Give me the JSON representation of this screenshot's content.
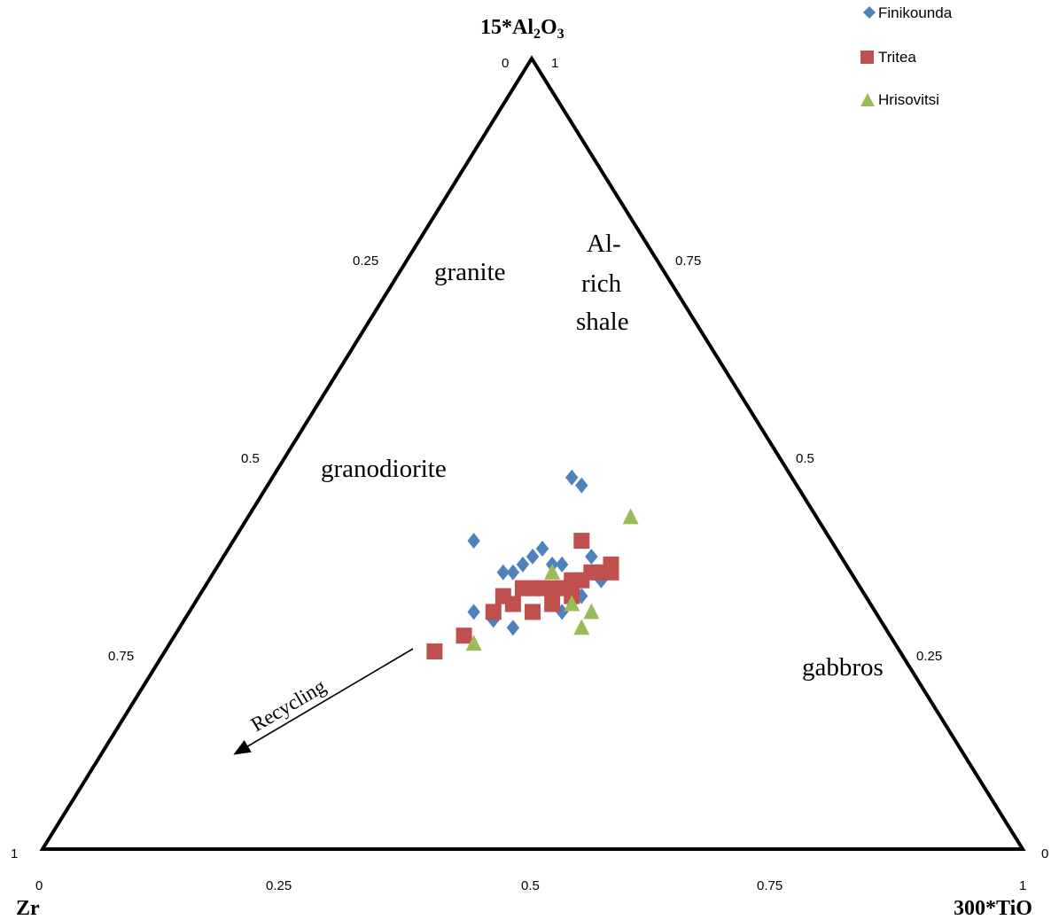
{
  "chart_data": {
    "type": "scatter",
    "subtype": "ternary",
    "axes": {
      "top": {
        "main": "15*Al",
        "sub1": "2",
        "mid": "O",
        "sub2": "3"
      },
      "left": "Zr",
      "right": "300*TiO"
    },
    "ticks": {
      "bottom": [
        "0",
        "0.25",
        "0.5",
        "0.75",
        "1"
      ],
      "left": [
        "1",
        "0.75",
        "0.5",
        "0.25",
        "0"
      ],
      "right": [
        "1",
        "0.75",
        "0.5",
        "0.25",
        "0"
      ]
    },
    "fields": {
      "granite": "granite",
      "al_rich_1": "Al-",
      "al_rich_2": "rich",
      "al_rich_3": "shale",
      "granodiorite": "granodiorite",
      "gabbros": "gabbros",
      "arrow": "Recycling"
    },
    "colors": {
      "Finikounda": "#4f81bd",
      "Tritea": "#c0504d",
      "Hrisovitsi": "#9bbb59"
    },
    "legend_position": "top-right",
    "series": [
      {
        "name": "Finikounda",
        "marker": "diamond",
        "points": [
          {
            "x": 0.54,
            "y": 0.47
          },
          {
            "x": 0.55,
            "y": 0.46
          },
          {
            "x": 0.44,
            "y": 0.39
          },
          {
            "x": 0.5,
            "y": 0.37
          },
          {
            "x": 0.51,
            "y": 0.38
          },
          {
            "x": 0.49,
            "y": 0.36
          },
          {
            "x": 0.52,
            "y": 0.36
          },
          {
            "x": 0.53,
            "y": 0.36
          },
          {
            "x": 0.48,
            "y": 0.35
          },
          {
            "x": 0.47,
            "y": 0.35
          },
          {
            "x": 0.56,
            "y": 0.37
          },
          {
            "x": 0.44,
            "y": 0.3
          },
          {
            "x": 0.46,
            "y": 0.29
          },
          {
            "x": 0.48,
            "y": 0.28
          },
          {
            "x": 0.5,
            "y": 0.3
          },
          {
            "x": 0.53,
            "y": 0.3
          },
          {
            "x": 0.55,
            "y": 0.32
          },
          {
            "x": 0.57,
            "y": 0.34
          }
        ]
      },
      {
        "name": "Tritea",
        "marker": "square",
        "points": [
          {
            "x": 0.55,
            "y": 0.39
          },
          {
            "x": 0.4,
            "y": 0.25
          },
          {
            "x": 0.43,
            "y": 0.27
          },
          {
            "x": 0.49,
            "y": 0.33
          },
          {
            "x": 0.47,
            "y": 0.32
          },
          {
            "x": 0.5,
            "y": 0.33
          },
          {
            "x": 0.51,
            "y": 0.33
          },
          {
            "x": 0.52,
            "y": 0.33
          },
          {
            "x": 0.53,
            "y": 0.33
          },
          {
            "x": 0.54,
            "y": 0.34
          },
          {
            "x": 0.55,
            "y": 0.34
          },
          {
            "x": 0.56,
            "y": 0.35
          },
          {
            "x": 0.57,
            "y": 0.35
          },
          {
            "x": 0.58,
            "y": 0.35
          },
          {
            "x": 0.58,
            "y": 0.36
          },
          {
            "x": 0.46,
            "y": 0.3
          },
          {
            "x": 0.48,
            "y": 0.31
          },
          {
            "x": 0.5,
            "y": 0.3
          },
          {
            "x": 0.52,
            "y": 0.31
          },
          {
            "x": 0.54,
            "y": 0.32
          }
        ]
      },
      {
        "name": "Hrisovitsi",
        "marker": "triangle",
        "points": [
          {
            "x": 0.6,
            "y": 0.42
          },
          {
            "x": 0.44,
            "y": 0.26
          },
          {
            "x": 0.52,
            "y": 0.35
          },
          {
            "x": 0.54,
            "y": 0.31
          },
          {
            "x": 0.55,
            "y": 0.28
          },
          {
            "x": 0.56,
            "y": 0.3
          }
        ]
      }
    ]
  }
}
